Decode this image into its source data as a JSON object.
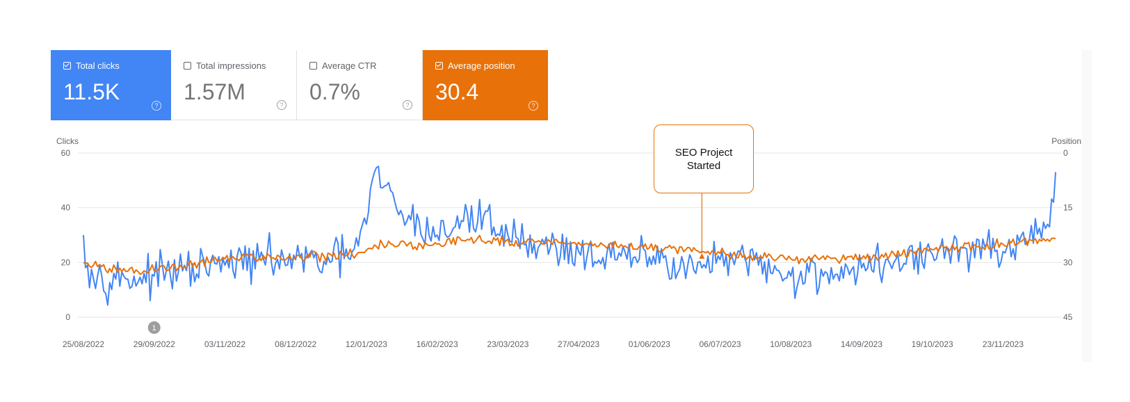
{
  "cards": [
    {
      "label": "Total clicks",
      "value": "11.5K",
      "checked": true,
      "color": "#4285f4"
    },
    {
      "label": "Total impressions",
      "value": "1.57M",
      "checked": false,
      "color": "#ffffff"
    },
    {
      "label": "Average CTR",
      "value": "0.7%",
      "checked": false,
      "color": "#ffffff"
    },
    {
      "label": "Average position",
      "value": "30.4",
      "checked": true,
      "color": "#e8710a"
    }
  ],
  "help_icon": "help-circle-icon",
  "annotation": {
    "text": "SEO Project\nStarted",
    "date": "27/06/2023"
  },
  "event_marker": {
    "label": "1",
    "date": "29/09/2022"
  },
  "chart_data": {
    "type": "line",
    "x_start": "25/08/2022",
    "x_end": "19/12/2023",
    "x_tick_labels": [
      "25/08/2022",
      "29/09/2022",
      "03/11/2022",
      "08/12/2022",
      "12/01/2023",
      "16/02/2023",
      "23/03/2023",
      "27/04/2023",
      "01/06/2023",
      "06/07/2023",
      "10/08/2023",
      "14/09/2023",
      "19/10/2023",
      "23/11/2023"
    ],
    "left_axis": {
      "label": "Clicks",
      "ticks": [
        "60",
        "40",
        "20",
        "0"
      ],
      "range": [
        0,
        60
      ]
    },
    "right_axis": {
      "label": "Position",
      "ticks": [
        "0",
        "15",
        "30",
        "45"
      ],
      "range": [
        0,
        45
      ],
      "inverted": true
    },
    "grid": true,
    "series": [
      {
        "name": "Clicks",
        "color": "#4285f4",
        "axis": "left",
        "keypoints": [
          [
            "25/08/2022",
            30
          ],
          [
            "27/08/2022",
            19
          ],
          [
            "01/09/2022",
            15
          ],
          [
            "15/09/2022",
            14
          ],
          [
            "29/09/2022",
            15
          ],
          [
            "15/10/2022",
            17
          ],
          [
            "03/11/2022",
            19
          ],
          [
            "20/11/2022",
            21
          ],
          [
            "08/12/2022",
            21
          ],
          [
            "25/12/2022",
            20
          ],
          [
            "05/01/2023",
            24
          ],
          [
            "12/01/2023",
            34
          ],
          [
            "16/01/2023",
            53
          ],
          [
            "30/01/2023",
            37
          ],
          [
            "16/02/2023",
            30
          ],
          [
            "01/03/2023",
            35
          ],
          [
            "11/03/2023",
            37
          ],
          [
            "23/03/2023",
            30
          ],
          [
            "05/04/2023",
            27
          ],
          [
            "27/04/2023",
            24
          ],
          [
            "15/05/2023",
            21
          ],
          [
            "01/06/2023",
            22
          ],
          [
            "20/06/2023",
            19
          ],
          [
            "27/06/2023",
            18
          ],
          [
            "06/07/2023",
            21
          ],
          [
            "25/07/2023",
            19
          ],
          [
            "10/08/2023",
            15
          ],
          [
            "28/08/2023",
            16
          ],
          [
            "14/09/2023",
            18
          ],
          [
            "30/09/2023",
            20
          ],
          [
            "19/10/2023",
            23
          ],
          [
            "05/11/2023",
            25
          ],
          [
            "23/11/2023",
            24
          ],
          [
            "08/12/2023",
            27
          ],
          [
            "16/12/2023",
            33
          ],
          [
            "19/12/2023",
            53
          ]
        ],
        "noise": 7
      },
      {
        "name": "Average position",
        "color": "#e8710a",
        "axis": "right",
        "keypoints": [
          [
            "25/08/2022",
            30
          ],
          [
            "15/09/2022",
            32.5
          ],
          [
            "01/10/2022",
            32
          ],
          [
            "03/11/2022",
            29
          ],
          [
            "08/12/2022",
            28.5
          ],
          [
            "05/01/2023",
            28
          ],
          [
            "20/01/2023",
            25
          ],
          [
            "16/02/2023",
            25
          ],
          [
            "01/03/2023",
            24
          ],
          [
            "27/04/2023",
            24.5
          ],
          [
            "20/05/2023",
            25.5
          ],
          [
            "01/06/2023",
            26
          ],
          [
            "27/06/2023",
            27
          ],
          [
            "06/07/2023",
            27.5
          ],
          [
            "10/08/2023",
            29
          ],
          [
            "14/09/2023",
            29
          ],
          [
            "19/10/2023",
            26.5
          ],
          [
            "23/11/2023",
            25
          ],
          [
            "19/12/2023",
            23.5
          ]
        ],
        "noise": 1.3
      }
    ]
  }
}
